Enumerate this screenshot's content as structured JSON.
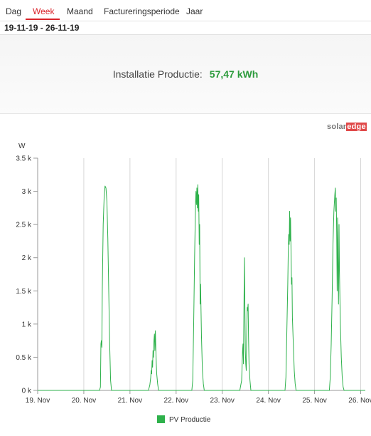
{
  "tabs": [
    {
      "label": "Dag",
      "active": false
    },
    {
      "label": "Week",
      "active": true
    },
    {
      "label": "Maand",
      "active": false
    },
    {
      "label": "Factureringsperiode",
      "active": false
    },
    {
      "label": "Jaar",
      "active": false
    }
  ],
  "date_range": "19-11-19 - 26-11-19",
  "summary": {
    "label": "Installatie Productie:",
    "value": "57,47 kWh"
  },
  "logo": {
    "text_a": "solar",
    "text_b": "edge",
    "accent_color": "#e04949"
  },
  "colors": {
    "active_tab": "#d9232a",
    "value_green": "#2c9b3c",
    "series_green": "#2eb14b"
  },
  "chart_data": {
    "type": "line",
    "ylabel": "W",
    "ylim": [
      0,
      3500
    ],
    "y_ticks": [
      {
        "value": 0,
        "label": "0 k"
      },
      {
        "value": 500,
        "label": "0.5 k"
      },
      {
        "value": 1000,
        "label": "1 k"
      },
      {
        "value": 1500,
        "label": "1.5 k"
      },
      {
        "value": 2000,
        "label": "2 k"
      },
      {
        "value": 2500,
        "label": "2.5 k"
      },
      {
        "value": 3000,
        "label": "3 k"
      },
      {
        "value": 3500,
        "label": "3.5 k"
      }
    ],
    "x_range": [
      0,
      7.1
    ],
    "x_ticks": [
      {
        "value": 0,
        "label": "19. Nov"
      },
      {
        "value": 1,
        "label": "20. Nov"
      },
      {
        "value": 2,
        "label": "21. Nov"
      },
      {
        "value": 3,
        "label": "22. Nov"
      },
      {
        "value": 4,
        "label": "23. Nov"
      },
      {
        "value": 5,
        "label": "24. Nov"
      },
      {
        "value": 6,
        "label": "25. Nov"
      },
      {
        "value": 7,
        "label": "26. Nov"
      }
    ],
    "grid": true,
    "legend_position": "bottom-center",
    "series": [
      {
        "name": "PV Productie",
        "color": "#2eb14b",
        "points": [
          [
            0,
            0
          ],
          [
            1.34,
            0
          ],
          [
            1.36,
            50
          ],
          [
            1.37,
            700
          ],
          [
            1.38,
            750
          ],
          [
            1.39,
            650
          ],
          [
            1.4,
            1500
          ],
          [
            1.42,
            2500
          ],
          [
            1.44,
            2900
          ],
          [
            1.46,
            3080
          ],
          [
            1.48,
            3050
          ],
          [
            1.5,
            2850
          ],
          [
            1.52,
            2300
          ],
          [
            1.54,
            1500
          ],
          [
            1.56,
            700
          ],
          [
            1.58,
            150
          ],
          [
            1.6,
            0
          ],
          [
            2.4,
            0
          ],
          [
            2.43,
            80
          ],
          [
            2.45,
            200
          ],
          [
            2.46,
            300
          ],
          [
            2.47,
            250
          ],
          [
            2.48,
            450
          ],
          [
            2.49,
            350
          ],
          [
            2.5,
            600
          ],
          [
            2.51,
            500
          ],
          [
            2.52,
            750
          ],
          [
            2.53,
            850
          ],
          [
            2.54,
            600
          ],
          [
            2.55,
            900
          ],
          [
            2.56,
            650
          ],
          [
            2.57,
            400
          ],
          [
            2.58,
            250
          ],
          [
            2.6,
            100
          ],
          [
            2.62,
            0
          ],
          [
            3.34,
            0
          ],
          [
            3.36,
            150
          ],
          [
            3.38,
            1000
          ],
          [
            3.4,
            2000
          ],
          [
            3.42,
            2800
          ],
          [
            3.43,
            3000
          ],
          [
            3.44,
            2800
          ],
          [
            3.45,
            3050
          ],
          [
            3.46,
            2750
          ],
          [
            3.47,
            3100
          ],
          [
            3.48,
            2700
          ],
          [
            3.49,
            2950
          ],
          [
            3.5,
            2200
          ],
          [
            3.51,
            2500
          ],
          [
            3.52,
            1300
          ],
          [
            3.53,
            1600
          ],
          [
            3.55,
            800
          ],
          [
            3.57,
            300
          ],
          [
            3.59,
            100
          ],
          [
            3.61,
            0
          ],
          [
            4.38,
            0
          ],
          [
            4.42,
            150
          ],
          [
            4.44,
            600
          ],
          [
            4.45,
            700
          ],
          [
            4.46,
            400
          ],
          [
            4.47,
            1200
          ],
          [
            4.48,
            2000
          ],
          [
            4.49,
            1300
          ],
          [
            4.5,
            600
          ],
          [
            4.51,
            400
          ],
          [
            4.52,
            300
          ],
          [
            4.53,
            800
          ],
          [
            4.54,
            1250
          ],
          [
            4.55,
            1200
          ],
          [
            4.56,
            1300
          ],
          [
            4.57,
            800
          ],
          [
            4.58,
            400
          ],
          [
            4.6,
            150
          ],
          [
            4.62,
            0
          ],
          [
            5.36,
            0
          ],
          [
            5.38,
            200
          ],
          [
            5.4,
            900
          ],
          [
            5.42,
            1600
          ],
          [
            5.43,
            2100
          ],
          [
            5.44,
            2350
          ],
          [
            5.45,
            2200
          ],
          [
            5.46,
            2700
          ],
          [
            5.47,
            2250
          ],
          [
            5.48,
            2600
          ],
          [
            5.49,
            2100
          ],
          [
            5.5,
            1600
          ],
          [
            5.51,
            1700
          ],
          [
            5.52,
            1100
          ],
          [
            5.54,
            700
          ],
          [
            5.56,
            300
          ],
          [
            5.58,
            100
          ],
          [
            5.6,
            0
          ],
          [
            6.32,
            0
          ],
          [
            6.34,
            200
          ],
          [
            6.36,
            700
          ],
          [
            6.38,
            1400
          ],
          [
            6.4,
            2200
          ],
          [
            6.42,
            2700
          ],
          [
            6.44,
            2950
          ],
          [
            6.45,
            3050
          ],
          [
            6.46,
            2700
          ],
          [
            6.47,
            2900
          ],
          [
            6.48,
            2400
          ],
          [
            6.49,
            1500
          ],
          [
            6.5,
            2600
          ],
          [
            6.51,
            1800
          ],
          [
            6.52,
            1300
          ],
          [
            6.53,
            2500
          ],
          [
            6.54,
            1800
          ],
          [
            6.56,
            1000
          ],
          [
            6.58,
            500
          ],
          [
            6.6,
            200
          ],
          [
            6.62,
            50
          ],
          [
            6.64,
            0
          ],
          [
            7.1,
            0
          ]
        ]
      }
    ]
  }
}
